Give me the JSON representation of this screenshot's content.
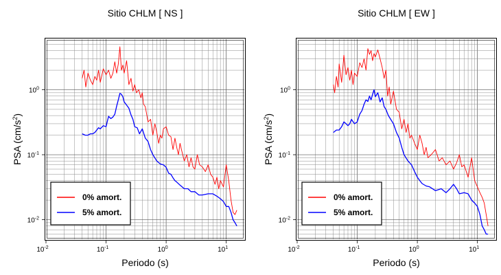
{
  "chart_data": [
    {
      "type": "line",
      "title": "Sitio CHLM [ NS ]",
      "xlabel": "Periodo (s)",
      "ylabel_main": "PSA (cm/s",
      "ylabel_sup": "2",
      "ylabel_end": ")",
      "x_scale": "log",
      "y_scale": "log",
      "xlim": [
        0.01,
        20
      ],
      "ylim": [
        0.005,
        6
      ],
      "grid": true,
      "legend_placement": "bottom-left",
      "x_ticks": [
        {
          "base": "10",
          "exp": "-2"
        },
        {
          "base": "10",
          "exp": "-1"
        },
        {
          "base": "10",
          "exp": "0"
        },
        {
          "base": "10",
          "exp": "1"
        }
      ],
      "y_ticks": [
        {
          "base": "10",
          "exp": "-2"
        },
        {
          "base": "10",
          "exp": "-1"
        },
        {
          "base": "10",
          "exp": "0"
        }
      ],
      "series": [
        {
          "name": "0% amort.",
          "color": "#ff0000",
          "x": [
            0.04,
            0.043,
            0.046,
            0.05,
            0.055,
            0.06,
            0.065,
            0.07,
            0.075,
            0.08,
            0.09,
            0.1,
            0.11,
            0.12,
            0.13,
            0.14,
            0.15,
            0.16,
            0.17,
            0.18,
            0.19,
            0.2,
            0.22,
            0.24,
            0.26,
            0.28,
            0.3,
            0.32,
            0.35,
            0.38,
            0.4,
            0.42,
            0.45,
            0.5,
            0.55,
            0.6,
            0.65,
            0.7,
            0.75,
            0.8,
            0.85,
            0.9,
            1.0,
            1.1,
            1.2,
            1.3,
            1.4,
            1.5,
            1.6,
            1.7,
            1.8,
            2.0,
            2.2,
            2.4,
            2.6,
            2.8,
            3.0,
            3.3,
            3.6,
            4.0,
            4.5,
            5.0,
            5.5,
            6.0,
            6.5,
            7.0,
            7.5,
            8.0,
            9.0,
            10.0,
            11.0,
            12.0,
            13.0,
            14.0,
            15.0
          ],
          "y": [
            1.5,
            2.0,
            1.1,
            1.8,
            1.4,
            1.2,
            1.6,
            1.4,
            2.0,
            1.3,
            2.1,
            1.7,
            2.0,
            1.5,
            1.8,
            2.7,
            1.8,
            2.5,
            4.6,
            2.0,
            2.4,
            1.8,
            2.8,
            1.2,
            1.5,
            0.95,
            1.2,
            0.9,
            1.0,
            0.75,
            0.9,
            0.6,
            0.55,
            0.32,
            0.35,
            0.2,
            0.3,
            0.22,
            0.15,
            0.2,
            0.18,
            0.25,
            0.27,
            0.2,
            0.19,
            0.12,
            0.18,
            0.13,
            0.1,
            0.15,
            0.12,
            0.08,
            0.1,
            0.065,
            0.09,
            0.065,
            0.06,
            0.1,
            0.07,
            0.065,
            0.055,
            0.07,
            0.05,
            0.045,
            0.035,
            0.045,
            0.03,
            0.04,
            0.032,
            0.07,
            0.04,
            0.02,
            0.013,
            0.012,
            0.014
          ]
        },
        {
          "name": "5% amort.",
          "color": "#0000ff",
          "x": [
            0.04,
            0.045,
            0.05,
            0.055,
            0.06,
            0.065,
            0.07,
            0.075,
            0.08,
            0.09,
            0.1,
            0.11,
            0.12,
            0.13,
            0.14,
            0.15,
            0.16,
            0.17,
            0.18,
            0.19,
            0.2,
            0.22,
            0.24,
            0.26,
            0.28,
            0.3,
            0.33,
            0.36,
            0.4,
            0.45,
            0.5,
            0.55,
            0.6,
            0.7,
            0.8,
            0.9,
            1.0,
            1.1,
            1.2,
            1.3,
            1.4,
            1.5,
            1.7,
            2.0,
            2.3,
            2.6,
            3.0,
            3.5,
            4.0,
            5.0,
            6.0,
            7.0,
            8.0,
            9.0,
            10.0,
            11.0,
            12.0,
            13.0,
            14.0,
            15.0
          ],
          "y": [
            0.21,
            0.2,
            0.2,
            0.21,
            0.21,
            0.22,
            0.24,
            0.26,
            0.25,
            0.28,
            0.27,
            0.39,
            0.36,
            0.38,
            0.42,
            0.56,
            0.7,
            0.88,
            0.85,
            0.78,
            0.65,
            0.58,
            0.52,
            0.41,
            0.35,
            0.27,
            0.26,
            0.21,
            0.25,
            0.18,
            0.16,
            0.12,
            0.1,
            0.08,
            0.072,
            0.07,
            0.064,
            0.052,
            0.05,
            0.044,
            0.04,
            0.038,
            0.034,
            0.03,
            0.03,
            0.027,
            0.027,
            0.024,
            0.024,
            0.025,
            0.025,
            0.023,
            0.021,
            0.019,
            0.016,
            0.016,
            0.013,
            0.01,
            0.009,
            0.008
          ]
        }
      ]
    },
    {
      "type": "line",
      "title": "Sitio CHLM [ EW ]",
      "xlabel": "Periodo (s)",
      "ylabel_main": "PSA (cm/s",
      "ylabel_sup": "2",
      "ylabel_end": ")",
      "x_scale": "log",
      "y_scale": "log",
      "xlim": [
        0.01,
        20
      ],
      "ylim": [
        0.005,
        6
      ],
      "grid": true,
      "legend_placement": "bottom-left",
      "x_ticks": [
        {
          "base": "10",
          "exp": "-2"
        },
        {
          "base": "10",
          "exp": "-1"
        },
        {
          "base": "10",
          "exp": "0"
        },
        {
          "base": "10",
          "exp": "1"
        }
      ],
      "y_ticks": [
        {
          "base": "10",
          "exp": "-2"
        },
        {
          "base": "10",
          "exp": "-1"
        },
        {
          "base": "10",
          "exp": "0"
        }
      ],
      "series": [
        {
          "name": "0% amort.",
          "color": "#ff0000",
          "x": [
            0.04,
            0.042,
            0.045,
            0.048,
            0.05,
            0.055,
            0.06,
            0.065,
            0.07,
            0.075,
            0.08,
            0.085,
            0.09,
            0.1,
            0.11,
            0.12,
            0.13,
            0.14,
            0.15,
            0.16,
            0.17,
            0.18,
            0.19,
            0.2,
            0.22,
            0.24,
            0.26,
            0.28,
            0.3,
            0.32,
            0.34,
            0.36,
            0.4,
            0.45,
            0.5,
            0.55,
            0.6,
            0.65,
            0.7,
            0.75,
            0.8,
            0.9,
            1.0,
            1.1,
            1.2,
            1.3,
            1.4,
            1.5,
            1.7,
            2.0,
            2.3,
            2.6,
            3.0,
            3.5,
            4.0,
            4.5,
            5.0,
            5.5,
            6.0,
            7.0,
            8.0,
            9.0,
            10.0,
            11.0,
            12.0,
            13.0,
            14.0,
            15.0
          ],
          "y": [
            1.2,
            0.9,
            1.6,
            1.1,
            2.5,
            1.3,
            3.4,
            1.7,
            2.2,
            1.4,
            2.0,
            1.2,
            1.8,
            1.6,
            2.6,
            2.2,
            3.0,
            2.0,
            4.3,
            3.5,
            4.0,
            2.8,
            3.6,
            3.2,
            4.1,
            3.0,
            2.2,
            1.5,
            2.0,
            0.8,
            1.1,
            0.6,
            0.95,
            0.5,
            0.45,
            0.25,
            0.35,
            0.22,
            0.3,
            0.18,
            0.2,
            0.15,
            0.12,
            0.2,
            0.15,
            0.1,
            0.13,
            0.09,
            0.1,
            0.12,
            0.08,
            0.09,
            0.07,
            0.08,
            0.06,
            0.075,
            0.1,
            0.065,
            0.07,
            0.045,
            0.09,
            0.04,
            0.032,
            0.026,
            0.022,
            0.018,
            0.012,
            0.008
          ]
        },
        {
          "name": "5% amort.",
          "color": "#0000ff",
          "x": [
            0.04,
            0.045,
            0.05,
            0.055,
            0.06,
            0.065,
            0.07,
            0.075,
            0.08,
            0.09,
            0.1,
            0.11,
            0.12,
            0.13,
            0.14,
            0.15,
            0.16,
            0.17,
            0.18,
            0.19,
            0.2,
            0.22,
            0.24,
            0.26,
            0.28,
            0.3,
            0.33,
            0.36,
            0.4,
            0.45,
            0.5,
            0.55,
            0.6,
            0.7,
            0.8,
            0.9,
            1.0,
            1.1,
            1.2,
            1.4,
            1.6,
            2.0,
            2.5,
            3.0,
            3.5,
            4.0,
            4.5,
            5.0,
            6.0,
            7.0,
            8.0,
            9.0,
            10.0,
            11.0,
            12.0,
            13.0,
            14.0,
            15.0
          ],
          "y": [
            0.22,
            0.24,
            0.24,
            0.27,
            0.32,
            0.3,
            0.28,
            0.3,
            0.35,
            0.3,
            0.32,
            0.42,
            0.48,
            0.6,
            0.7,
            0.66,
            0.8,
            0.7,
            0.85,
            1.0,
            0.78,
            0.9,
            0.65,
            0.75,
            0.55,
            0.5,
            0.4,
            0.35,
            0.3,
            0.22,
            0.18,
            0.13,
            0.1,
            0.08,
            0.07,
            0.055,
            0.045,
            0.04,
            0.036,
            0.033,
            0.032,
            0.028,
            0.03,
            0.026,
            0.03,
            0.035,
            0.03,
            0.025,
            0.026,
            0.025,
            0.02,
            0.018,
            0.016,
            0.012,
            0.008,
            0.007,
            0.006,
            0.006
          ]
        }
      ]
    }
  ]
}
